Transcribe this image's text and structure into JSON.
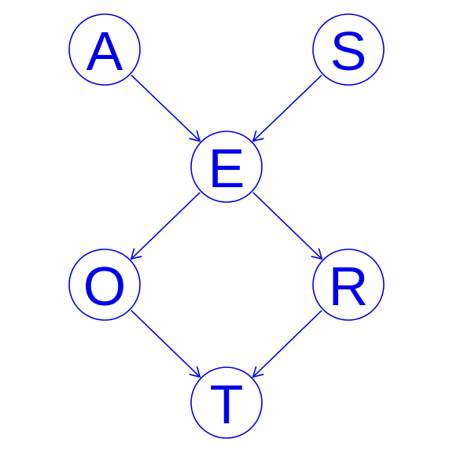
{
  "colors": {
    "stroke": "#0000ee",
    "text": "#0000ee",
    "background": "#ffffff"
  },
  "nodes": [
    {
      "id": "A",
      "label": "A"
    },
    {
      "id": "S",
      "label": "S"
    },
    {
      "id": "E",
      "label": "E"
    },
    {
      "id": "O",
      "label": "O"
    },
    {
      "id": "R",
      "label": "R"
    },
    {
      "id": "T",
      "label": "T"
    }
  ],
  "edges": [
    {
      "from": "A",
      "to": "E"
    },
    {
      "from": "S",
      "to": "E"
    },
    {
      "from": "E",
      "to": "O"
    },
    {
      "from": "E",
      "to": "R"
    },
    {
      "from": "O",
      "to": "T"
    },
    {
      "from": "R",
      "to": "T"
    }
  ]
}
